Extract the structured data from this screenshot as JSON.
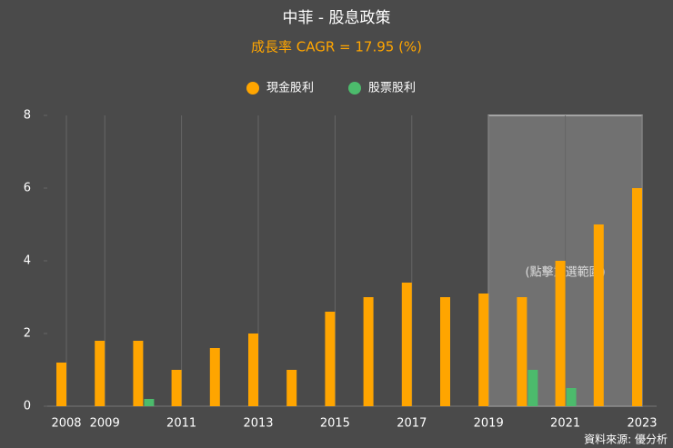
{
  "chart_data": {
    "type": "bar",
    "title": "中菲 - 股息政策",
    "subtitle": "成長率 CAGR = 17.95 (%)",
    "categories": [
      "2008",
      "2009",
      null,
      "2011",
      null,
      "2013",
      null,
      "2015",
      null,
      "2017",
      null,
      "2019",
      null,
      "2021",
      null,
      "2023"
    ],
    "series": [
      {
        "name": "現金股利",
        "color": "#ffa500",
        "values": [
          1.2,
          1.8,
          1.8,
          1.0,
          1.6,
          2.0,
          1.0,
          2.6,
          3.0,
          3.4,
          3.0,
          3.1,
          3.0,
          4.0,
          5.0,
          6.0
        ]
      },
      {
        "name": "股票股利",
        "color": "#4cbb6c",
        "values": [
          0,
          0,
          0.2,
          0,
          0,
          0,
          0,
          0,
          0,
          0,
          0,
          0,
          1.0,
          0.5,
          0,
          0
        ]
      }
    ],
    "ylim": [
      0,
      8
    ],
    "yticks": [
      0,
      2,
      4,
      6,
      8
    ],
    "grid": true,
    "selection_range": [
      "2019",
      "2023"
    ],
    "selection_label": "(點擊重選範圍)",
    "source": "資料來源: 優分析"
  }
}
